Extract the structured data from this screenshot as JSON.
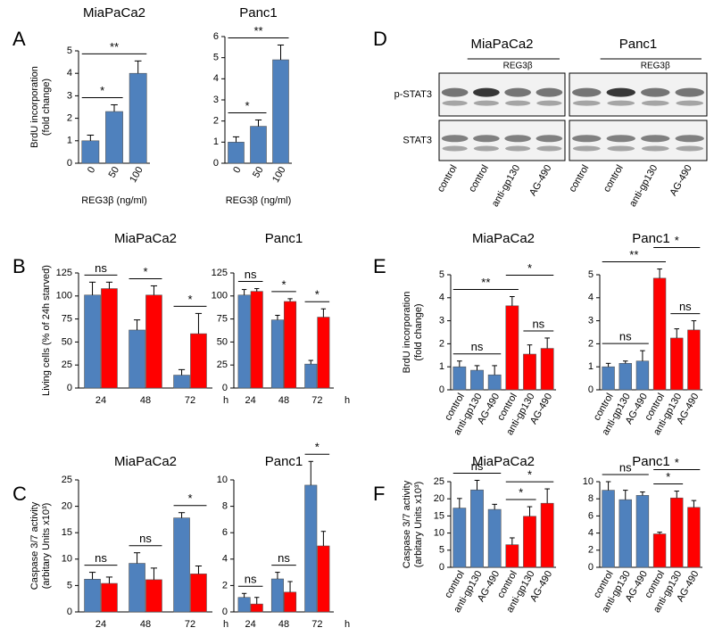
{
  "panel_labels": [
    "A",
    "B",
    "C",
    "D",
    "E",
    "F"
  ],
  "blot": {
    "titles": [
      "MiaPaCa2",
      "Panc1"
    ],
    "treatment": "REG3β",
    "rows": [
      "p-STAT3",
      "STAT3"
    ],
    "lanes": [
      "control",
      "control",
      "anti-gp130",
      "AG-490"
    ]
  },
  "chart_data": [
    {
      "type": "bar",
      "title": "MiaPaCa2",
      "ylabel": [
        "BrdU incorporation",
        "(fold change)"
      ],
      "xlabel": "REG3β (ng/ml)",
      "categories": [
        "0",
        "50",
        "100"
      ],
      "values": [
        1,
        2.3,
        4
      ],
      "errors": [
        0.25,
        0.3,
        0.55
      ],
      "color": "#4f81bd",
      "ylim": [
        0,
        5
      ],
      "yticks": [
        0,
        1,
        2,
        3,
        4,
        5
      ],
      "brackets": [
        {
          "label": "*",
          "bars": [
            0,
            1
          ]
        },
        {
          "label": "**",
          "bars": [
            0,
            2
          ]
        }
      ]
    },
    {
      "type": "bar",
      "title": "Panc1",
      "xlabel": "REG3β (ng/ml)",
      "categories": [
        "0",
        "50",
        "100"
      ],
      "values": [
        1,
        1.75,
        4.9
      ],
      "errors": [
        0.25,
        0.3,
        0.7
      ],
      "color": "#4f81bd",
      "ylim": [
        0,
        6
      ],
      "yticks": [
        0,
        1,
        2,
        3,
        4,
        5,
        6
      ],
      "brackets": [
        {
          "label": "*",
          "bars": [
            0,
            1
          ]
        },
        {
          "label": "**",
          "bars": [
            0,
            2
          ]
        }
      ]
    },
    {
      "type": "bar",
      "title": "MiaPaCa2",
      "ylabel": [
        "Living cells (% of 24h starved)"
      ],
      "xunit": "h",
      "categories": [
        "24",
        "48",
        "72"
      ],
      "series": [
        {
          "color": "#4f81bd",
          "values": [
            101,
            63,
            14
          ],
          "errors": [
            14,
            11,
            6
          ]
        },
        {
          "color": "#ff0000",
          "values": [
            108,
            101,
            59
          ],
          "errors": [
            7,
            10,
            22
          ]
        }
      ],
      "ylim": [
        0,
        125
      ],
      "yticks": [
        0,
        25,
        50,
        75,
        100,
        125
      ],
      "brackets": [
        {
          "label": "ns",
          "bars": [
            0,
            1
          ]
        },
        {
          "label": "*",
          "bars": [
            2,
            3
          ]
        },
        {
          "label": "*",
          "bars": [
            4,
            5
          ]
        }
      ]
    },
    {
      "type": "bar",
      "title": "Panc1",
      "xunit": "h",
      "categories": [
        "24",
        "48",
        "72"
      ],
      "series": [
        {
          "color": "#4f81bd",
          "values": [
            101,
            74,
            26
          ],
          "errors": [
            6,
            5,
            4
          ]
        },
        {
          "color": "#ff0000",
          "values": [
            105,
            94,
            77
          ],
          "errors": [
            3,
            3,
            9
          ]
        }
      ],
      "ylim": [
        0,
        125
      ],
      "yticks": [
        0,
        25,
        50,
        75,
        100,
        125
      ],
      "brackets": [
        {
          "label": "ns",
          "bars": [
            0,
            1
          ]
        },
        {
          "label": "*",
          "bars": [
            2,
            3
          ]
        },
        {
          "label": "*",
          "bars": [
            4,
            5
          ]
        }
      ]
    },
    {
      "type": "bar",
      "title": "MiaPaCa2",
      "ylabel": [
        "Caspase 3/7 activity",
        "(arbitary Units x10³)"
      ],
      "xunit": "h",
      "categories": [
        "24",
        "48",
        "72"
      ],
      "series": [
        {
          "color": "#4f81bd",
          "values": [
            6.2,
            9.2,
            17.8
          ],
          "errors": [
            1.3,
            2,
            1
          ]
        },
        {
          "color": "#ff0000",
          "values": [
            5.4,
            6.1,
            7.2
          ],
          "errors": [
            1.2,
            2.2,
            1.5
          ]
        }
      ],
      "ylim": [
        0,
        25
      ],
      "yticks": [
        0,
        5,
        10,
        15,
        20,
        25
      ],
      "brackets": [
        {
          "label": "ns",
          "bars": [
            0,
            1
          ]
        },
        {
          "label": "ns",
          "bars": [
            2,
            3
          ]
        },
        {
          "label": "*",
          "bars": [
            4,
            5
          ]
        }
      ]
    },
    {
      "type": "bar",
      "title": "Panc1",
      "xunit": "h",
      "categories": [
        "24",
        "48",
        "72"
      ],
      "series": [
        {
          "color": "#4f81bd",
          "values": [
            1.1,
            2.5,
            9.6
          ],
          "errors": [
            0.3,
            0.5,
            1.8
          ]
        },
        {
          "color": "#ff0000",
          "values": [
            0.6,
            1.5,
            5
          ],
          "errors": [
            0.5,
            0.8,
            1.1
          ]
        }
      ],
      "ylim": [
        0,
        10
      ],
      "yticks": [
        0,
        2,
        4,
        6,
        8,
        10
      ],
      "brackets": [
        {
          "label": "ns",
          "bars": [
            0,
            1
          ]
        },
        {
          "label": "ns",
          "bars": [
            2,
            3
          ]
        },
        {
          "label": "*",
          "bars": [
            4,
            5
          ]
        }
      ]
    },
    {
      "type": "bar",
      "title": "MiaPaCa2",
      "ylabel": [
        "BrdU incorporation",
        "(fold change)"
      ],
      "categories": [
        "control",
        "anti-gp130",
        "AG-490",
        "control",
        "anti-gp130",
        "AG-490"
      ],
      "values": [
        1,
        0.85,
        0.65,
        3.65,
        1.55,
        1.8
      ],
      "errors": [
        0.25,
        0.2,
        0.4,
        0.4,
        0.4,
        0.45
      ],
      "colors": [
        "#4f81bd",
        "#4f81bd",
        "#4f81bd",
        "#ff0000",
        "#ff0000",
        "#ff0000"
      ],
      "ylim": [
        0,
        5
      ],
      "yticks": [
        0,
        1,
        2,
        3,
        4,
        5
      ],
      "brackets": [
        {
          "label": "ns",
          "bars": [
            0,
            2
          ]
        },
        {
          "label": "**",
          "bars": [
            0,
            3
          ]
        },
        {
          "label": "ns",
          "bars": [
            4,
            5
          ]
        },
        {
          "label": "*",
          "bars": [
            3,
            5
          ]
        }
      ]
    },
    {
      "type": "bar",
      "title": "Panc1",
      "categories": [
        "control",
        "anti-gp130",
        "AG-490",
        "control",
        "anti-gp130",
        "AG-490"
      ],
      "values": [
        1,
        1.15,
        1.25,
        4.85,
        2.25,
        2.6
      ],
      "errors": [
        0.15,
        0.1,
        0.45,
        0.4,
        0.4,
        0.4
      ],
      "colors": [
        "#4f81bd",
        "#4f81bd",
        "#4f81bd",
        "#ff0000",
        "#ff0000",
        "#ff0000"
      ],
      "ylim": [
        0,
        5
      ],
      "yticks": [
        0,
        1,
        2,
        3,
        4,
        5
      ],
      "brackets": [
        {
          "label": "ns",
          "bars": [
            0,
            2
          ]
        },
        {
          "label": "**",
          "bars": [
            0,
            3
          ]
        },
        {
          "label": "ns",
          "bars": [
            4,
            5
          ]
        },
        {
          "label": "*",
          "bars": [
            3,
            5
          ]
        }
      ]
    },
    {
      "type": "bar",
      "title": "MiaPaCa2",
      "ylabel": [
        "Caspase 3/7 activity",
        "(arbitary Units x10³)"
      ],
      "categories": [
        "control",
        "anti-gp130",
        "AG-490",
        "control",
        "anti-gp130",
        "AG-490"
      ],
      "values": [
        17.3,
        22.6,
        16.9,
        6.6,
        14.9,
        18.7
      ],
      "errors": [
        2.8,
        2.8,
        1.5,
        2,
        2.8,
        4.2
      ],
      "colors": [
        "#4f81bd",
        "#4f81bd",
        "#4f81bd",
        "#ff0000",
        "#ff0000",
        "#ff0000"
      ],
      "ylim": [
        0,
        25
      ],
      "yticks": [
        0,
        5,
        10,
        15,
        20,
        25
      ],
      "brackets": [
        {
          "label": "ns",
          "bars": [
            0,
            2
          ]
        },
        {
          "label": "*",
          "bars": [
            3,
            4
          ]
        },
        {
          "label": "*",
          "bars": [
            3,
            5
          ]
        }
      ]
    },
    {
      "type": "bar",
      "title": "Panc1",
      "categories": [
        "control",
        "anti-gp130",
        "AG-490",
        "control",
        "anti-gp130",
        "AG-490"
      ],
      "values": [
        9,
        7.9,
        8.4,
        3.9,
        8.1,
        7
      ],
      "errors": [
        1,
        1.1,
        0.4,
        0.2,
        0.8,
        0.8
      ],
      "colors": [
        "#4f81bd",
        "#4f81bd",
        "#4f81bd",
        "#ff0000",
        "#ff0000",
        "#ff0000"
      ],
      "ylim": [
        0,
        10
      ],
      "yticks": [
        0,
        2,
        4,
        6,
        8,
        10
      ],
      "brackets": [
        {
          "label": "ns",
          "bars": [
            0,
            2
          ]
        },
        {
          "label": "*",
          "bars": [
            3,
            4
          ]
        },
        {
          "label": "*",
          "bars": [
            3,
            5
          ]
        }
      ]
    }
  ]
}
